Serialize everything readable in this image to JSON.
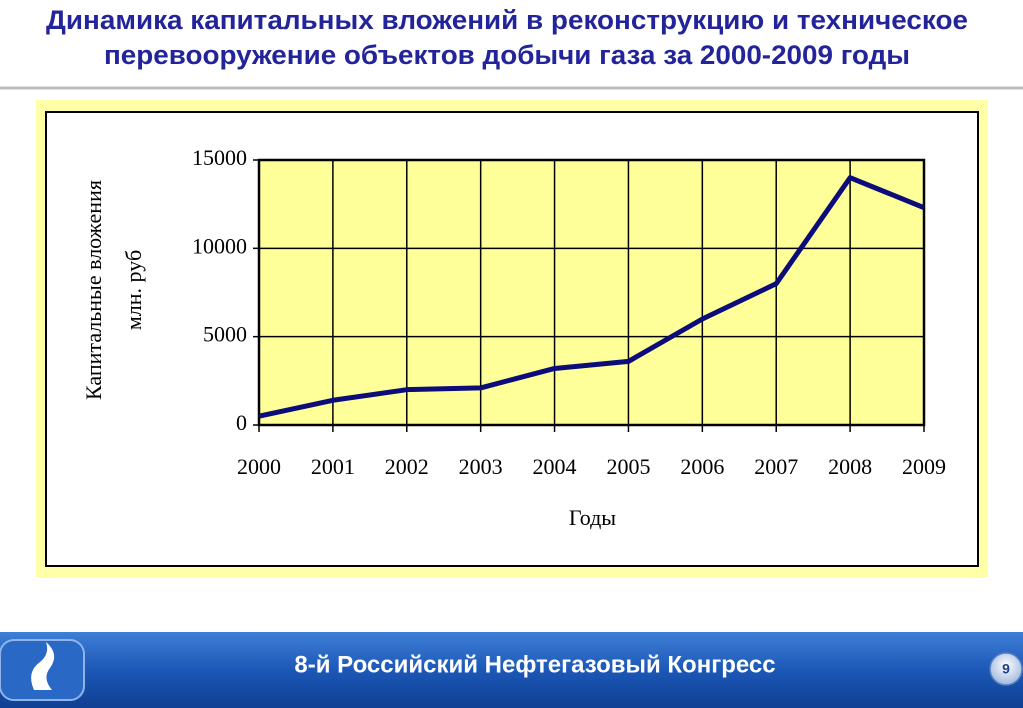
{
  "chart_data": {
    "type": "line",
    "title": [
      "Динамика капитальных вложений в реконструкцию и техническое",
      "перевооружение объектов добычи газа за 2000-2009 годы"
    ],
    "categories": [
      "2000",
      "2001",
      "2002",
      "2003",
      "2004",
      "2005",
      "2006",
      "2007",
      "2008",
      "2009"
    ],
    "values": [
      500,
      1400,
      2000,
      2100,
      3200,
      3600,
      6000,
      8000,
      14000,
      12300
    ],
    "color": "#0c0c7a",
    "plot_background": "#ffff99",
    "ylim": [
      0,
      15000
    ],
    "yticks": [
      0,
      5000,
      10000,
      15000
    ],
    "grid": true,
    "x_label": "Годы",
    "y_label": [
      "Капитальные вложения",
      "млн. руб"
    ]
  },
  "footer": {
    "text": "8-й Российский Нефтегазовый Конгресс",
    "page_number": "9"
  }
}
